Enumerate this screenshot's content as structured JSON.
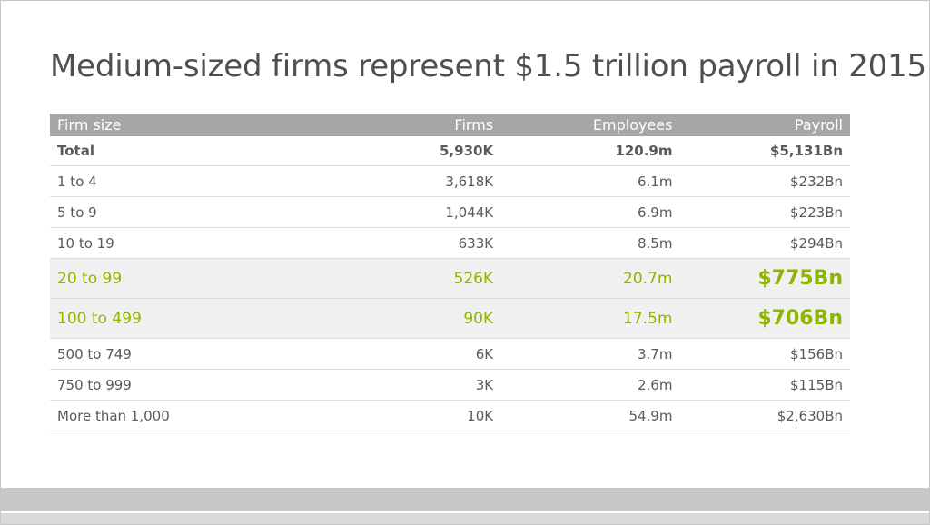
{
  "title": "Medium-sized firms represent $1.5 trillion payroll in 2015",
  "table": {
    "headers": [
      "Firm size",
      "Firms",
      "Employees",
      "Payroll"
    ],
    "rows": [
      [
        "Total",
        "5,930K",
        "120.9m",
        "$5,131Bn"
      ],
      [
        "1 to 4",
        "3,618K",
        "6.1m",
        "$232Bn"
      ],
      [
        "5 to 9",
        "1,044K",
        "6.9m",
        "$223Bn"
      ],
      [
        "10 to 19",
        "633K",
        "8.5m",
        "$294Bn"
      ],
      [
        "20 to 99",
        "526K",
        "20.7m",
        "$775Bn"
      ],
      [
        "100 to 499",
        "90K",
        "17.5m",
        "$706Bn"
      ],
      [
        "500 to 749",
        "6K",
        "3.7m",
        "$156Bn"
      ],
      [
        "750 to 999",
        "3K",
        "2.6m",
        "$115Bn"
      ],
      [
        "More than 1,000",
        "10K",
        "54.9m",
        "$2,630Bn"
      ]
    ]
  },
  "colors": {
    "highlight_text": "#8db600",
    "header_bg": "#a6a6a6",
    "highlight_row_bg": "#f0f0f0",
    "body_text": "#595959"
  }
}
